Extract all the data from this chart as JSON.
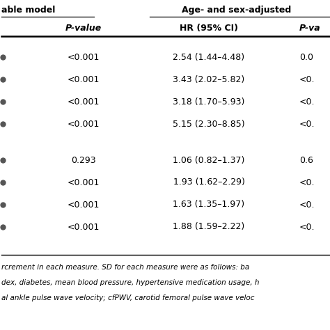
{
  "header1_left": "able model",
  "header1_right": "Age- and sex-adjusted",
  "header2_col1": "P-value",
  "header2_col2": "HR (95% CI)",
  "header2_col3": "P-va",
  "group1_rows": [
    [
      "<0.001",
      "2.54 (1.44–4.48)",
      "0.0"
    ],
    [
      "<0.001",
      "3.43 (2.02–5.82)",
      "<0."
    ],
    [
      "<0.001",
      "3.18 (1.70–5.93)",
      "<0."
    ],
    [
      "<0.001",
      "5.15 (2.30–8.85)",
      "<0."
    ]
  ],
  "group2_rows": [
    [
      "0.293",
      "1.06 (0.82–1.37)",
      "0.6"
    ],
    [
      "<0.001",
      "1.93 (1.62–2.29)",
      "<0."
    ],
    [
      "<0.001",
      "1.63 (1.35–1.97)",
      "<0."
    ],
    [
      "<0.001",
      "1.88 (1.59–2.22)",
      "<0."
    ]
  ],
  "footnote1": "rcrement in each measure. SD for each measure were as follows: ba",
  "footnote2": "dex, diabetes, mean blood pressure, hypertensive medication usage, h",
  "footnote3": "al ankle pulse wave velocity; cfPWV, carotid femoral pulse wave veloc",
  "bg_color": "#ffffff",
  "line_color": "#000000",
  "text_color": "#000000",
  "dot_color": "#555555",
  "fs_header": 9.0,
  "fs_body": 9.0,
  "fs_footnote": 7.5
}
